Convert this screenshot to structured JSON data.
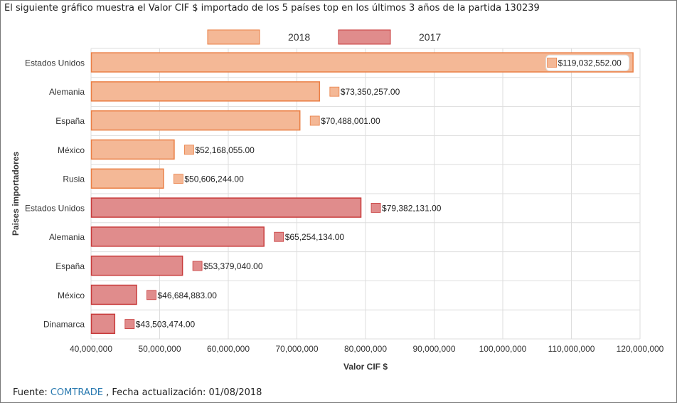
{
  "heading": "El siguiente gráfico muestra el Valor CIF $ importado de los 5 países top en los últimos 3 años de la partida 130239",
  "footer": {
    "prefix": "Fuente: ",
    "source_link": "COMTRADE",
    "suffix": " , Fecha actualización: 01/08/2018"
  },
  "colors": {
    "series_2018_fill": "#f4b896",
    "series_2018_stroke": "#ea7f45",
    "series_2017_fill": "#e08c8c",
    "series_2017_stroke": "#c83c3c",
    "grid": "#dddddd"
  },
  "chart_data": {
    "type": "bar",
    "orientation": "horizontal",
    "xlabel": "Valor CIF $",
    "ylabel": "Paises importadores",
    "xlim": [
      40000000,
      120000000
    ],
    "x_ticks": [
      "40,000,000",
      "50,000,000",
      "60,000,000",
      "70,000,000",
      "80,000,000",
      "90,000,000",
      "100,000,000",
      "110,000,000",
      "120,000,000"
    ],
    "legend_position": "top",
    "grid": true,
    "series": [
      {
        "name": "2018",
        "categories": [
          "Estados Unidos",
          "Alemania",
          "España",
          "México",
          "Rusia"
        ],
        "values": [
          119032552,
          73350257,
          70488001,
          52168055,
          50606244
        ],
        "labels": [
          "$119,032,552.00",
          "$73,350,257.00",
          "$70,488,001.00",
          "$52,168,055.00",
          "$50,606,244.00"
        ]
      },
      {
        "name": "2017",
        "categories": [
          "Estados Unidos",
          "Alemania",
          "España",
          "México",
          "Dinamarca"
        ],
        "values": [
          79382131,
          65254134,
          53379040,
          46684883,
          43503474
        ],
        "labels": [
          "$79,382,131.00",
          "$65,254,134.00",
          "$53,379,040.00",
          "$46,684,883.00",
          "$43,503,474.00"
        ]
      }
    ]
  }
}
